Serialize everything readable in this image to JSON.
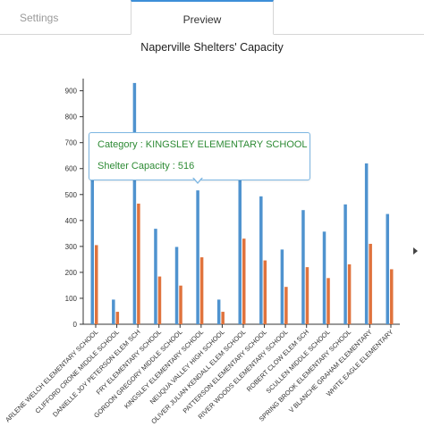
{
  "tabs": [
    {
      "label": "Settings",
      "active": false
    },
    {
      "label": "Preview",
      "active": true
    }
  ],
  "chart_data": {
    "type": "bar",
    "title": "Naperville Shelters' Capacity",
    "xlabel": "",
    "ylabel": "",
    "ylim": [
      0,
      940
    ],
    "yticks": [
      0,
      100,
      200,
      300,
      400,
      500,
      600,
      700,
      800,
      900
    ],
    "grid": false,
    "legend": "none",
    "colors": {
      "series1": "#4f93cf",
      "series2": "#e0733d"
    },
    "categories": [
      "ARLENE WELCH ELEMENTARY SCHOOL",
      "CLIFFORD CRONE MIDDLE SCHOOL",
      "DANIELLE JOY PETERSON ELEM SCH",
      "FRY ELEMENTARY SCHOOL",
      "GORDON GREGORY MIDDLE SCHOOL",
      "KINGSLEY ELEMENTARY SCHOOL",
      "NEUQUA VALLEY HIGH SCHOOL",
      "OLIVER JULIAN KENDALL ELEM SCHOOL",
      "PATTERSON ELEMENTARY SCHOOL",
      "RIVER WOODS ELEMENTARY SCHOOL",
      "ROBERT CLOW ELEM SCH",
      "SCULLEN MIDDLE SCHOOL",
      "SPRING BROOK ELEMENTARY SCHOOL",
      "V BLANCHE GRAHAM ELEMENTARY",
      "WHITE EAGLE ELEMENTARY"
    ],
    "series": [
      {
        "values": [
          610,
          95,
          930,
          368,
          298,
          516,
          95,
          660,
          493,
          288,
          440,
          357,
          462,
          620,
          425
        ]
      },
      {
        "values": [
          305,
          48,
          465,
          184,
          149,
          258,
          48,
          330,
          246,
          144,
          220,
          178,
          231,
          310,
          212
        ]
      }
    ]
  },
  "tooltip": {
    "category_text": "Category : KINGSLEY ELEMENTARY SCHOOL",
    "capacity_text": "Shelter Capacity : 516"
  },
  "icons": {
    "scroll_right": "chevron-right-icon"
  }
}
